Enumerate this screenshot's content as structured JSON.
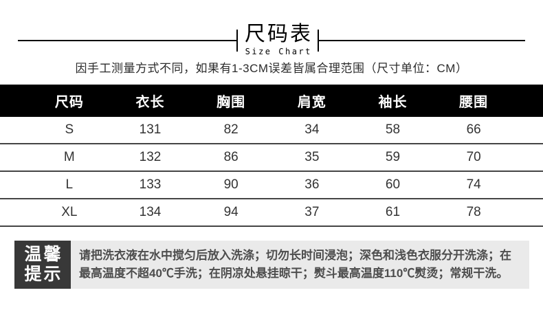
{
  "header": {
    "title": "尺码表",
    "subtitle_en": "Size Chart",
    "note": "因手工测量方式不同，如果有1-3CM误差皆属合理范围（尺寸单位：CM）"
  },
  "table": {
    "columns": [
      "尺码",
      "衣长",
      "胸围",
      "肩宽",
      "袖长",
      "腰围"
    ],
    "rows": [
      [
        "S",
        "131",
        "82",
        "34",
        "58",
        "66"
      ],
      [
        "M",
        "132",
        "86",
        "35",
        "59",
        "70"
      ],
      [
        "L",
        "133",
        "90",
        "36",
        "60",
        "74"
      ],
      [
        "XL",
        "134",
        "94",
        "37",
        "61",
        "78"
      ]
    ]
  },
  "tips": {
    "badge_line1": "温馨",
    "badge_line2": "提示",
    "lines": [
      "请把洗衣液在水中搅匀后放入洗涤；切勿长时间浸泡；深色和浅色衣服分开洗涤；在",
      "最高温度不超40℃手洗；在阴凉处悬挂晾干；熨斗最高温度110℃熨烫；常规干洗。"
    ]
  },
  "colors": {
    "page_bg": "#ffffff",
    "table_header_bg": "#000000",
    "table_header_text": "#ffffff",
    "row_divider": "#454545",
    "tips_badge_bg": "#383838",
    "tips_bg": "#eaeaea",
    "tips_text": "#4d4d4d"
  },
  "chart_data": {
    "type": "table",
    "title": "尺码表",
    "subtitle": "Size Chart",
    "note": "因手工测量方式不同，如果有1-3CM误差皆属合理范围（尺寸单位：CM）",
    "unit": "CM",
    "columns": [
      "尺码",
      "衣长",
      "胸围",
      "肩宽",
      "袖长",
      "腰围"
    ],
    "rows": [
      [
        "S",
        131,
        82,
        34,
        58,
        66
      ],
      [
        "M",
        132,
        86,
        35,
        59,
        70
      ],
      [
        "L",
        133,
        90,
        36,
        60,
        74
      ],
      [
        "XL",
        134,
        94,
        37,
        61,
        78
      ]
    ],
    "footer_note": "请把洗衣液在水中搅匀后放入洗涤；切勿长时间浸泡；深色和浅色衣服分开洗涤；在最高温度不超40℃手洗；在阴凉处悬挂晾干；熨斗最高温度110℃熨烫；常规干洗。"
  }
}
